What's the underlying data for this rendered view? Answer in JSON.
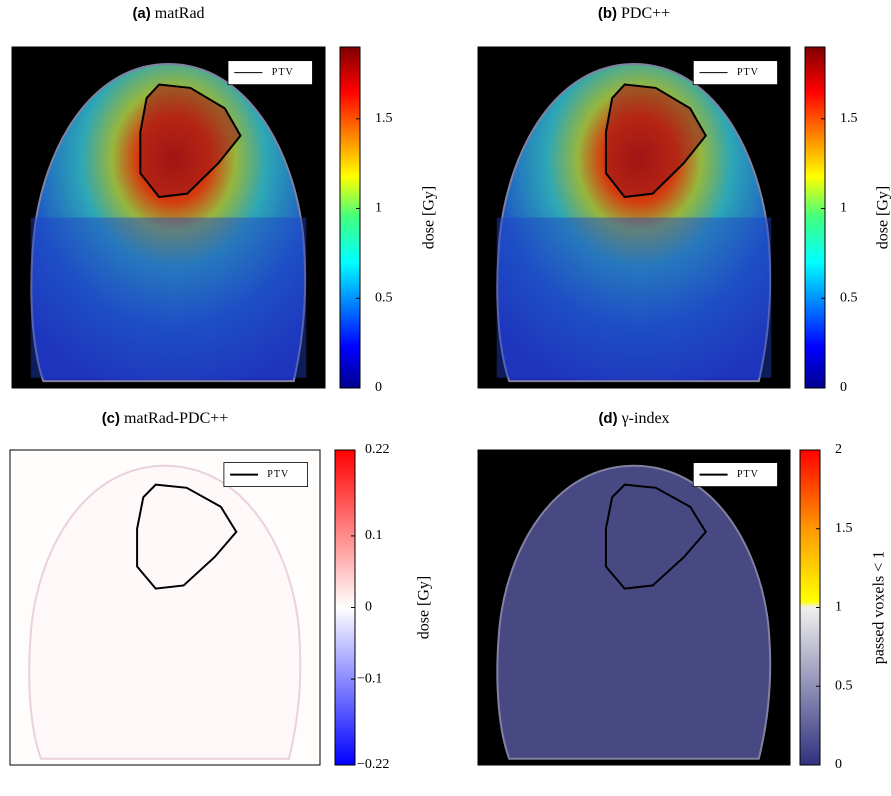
{
  "panels": [
    {
      "label": "(a)",
      "title": "matRad",
      "legend": "PTV",
      "colorbar": {
        "label": "dose [Gy]",
        "range": [
          0,
          1.9
        ],
        "ticks": [
          0,
          0.5,
          1,
          1.5
        ]
      }
    },
    {
      "label": "(b)",
      "title": "PDC++",
      "legend": "PTV",
      "colorbar": {
        "label": "dose [Gy]",
        "range": [
          0,
          1.9
        ],
        "ticks": [
          0,
          0.5,
          1,
          1.5
        ]
      }
    },
    {
      "label": "(c)",
      "title": "matRad-PDC++",
      "legend": "PTV",
      "colorbar": {
        "label": "dose [Gy]",
        "range": [
          -0.22,
          0.22
        ],
        "ticks": [
          {
            "value": -0.22,
            "label": "−0.22"
          },
          {
            "value": -0.1,
            "label": "−0.1"
          },
          0,
          0.1,
          0.22
        ]
      }
    },
    {
      "label": "(d)",
      "title": "γ-index",
      "legend": "PTV",
      "colorbar": {
        "label": "passed voxels < 1",
        "range": [
          0,
          2
        ],
        "ticks": [
          0,
          0.5,
          1,
          1.5,
          2
        ]
      }
    }
  ]
}
